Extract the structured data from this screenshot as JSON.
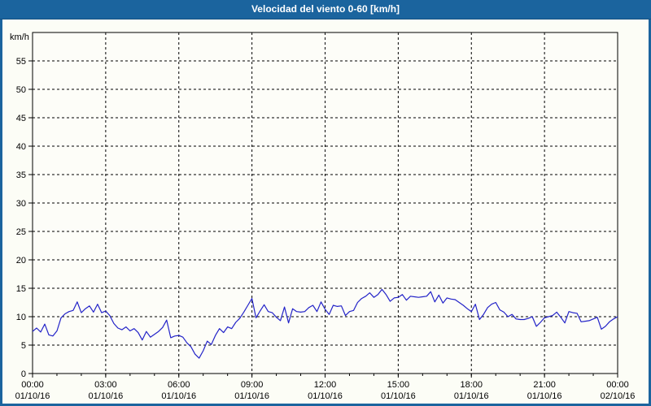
{
  "window": {
    "title": "Velocidad del viento 0-60 [km/h]",
    "titlebar_color": "#1b649e",
    "titlebar_underline_color": "#124f80",
    "frame_color": "#1b649e",
    "content_bg": "#fcfdf6"
  },
  "chart_data": {
    "type": "line",
    "title": "Velocidad del viento 0-60 [km/h]",
    "ylabel": "km/h",
    "ylim": [
      0,
      60
    ],
    "ytick_step": 5,
    "ytick_labels": [
      "0",
      "5",
      "10",
      "15",
      "20",
      "25",
      "30",
      "35",
      "40",
      "45",
      "50",
      "55"
    ],
    "xlim_minutes": [
      0,
      1440
    ],
    "x_minor_step_minutes": 60,
    "x_major_ticks": [
      {
        "minutes": 0,
        "time": "00:00",
        "date": "01/10/16"
      },
      {
        "minutes": 180,
        "time": "03:00",
        "date": "01/10/16"
      },
      {
        "minutes": 360,
        "time": "06:00",
        "date": "01/10/16"
      },
      {
        "minutes": 540,
        "time": "09:00",
        "date": "01/10/16"
      },
      {
        "minutes": 720,
        "time": "12:00",
        "date": "01/10/16"
      },
      {
        "minutes": 900,
        "time": "15:00",
        "date": "01/10/16"
      },
      {
        "minutes": 1080,
        "time": "18:00",
        "date": "01/10/16"
      },
      {
        "minutes": 1260,
        "time": "21:00",
        "date": "01/10/16"
      },
      {
        "minutes": 1440,
        "time": "00:00",
        "date": "02/10/16"
      }
    ],
    "grid_style": "dashed",
    "grid_color": "#000000",
    "line_color": "#2323c8",
    "plot_bg": "#fdfdf8",
    "legend": "none",
    "series": [
      {
        "name": "Velocidad del viento",
        "x_step_minutes": 10,
        "values": [
          7.4,
          8.0,
          7.3,
          8.7,
          6.8,
          6.6,
          7.5,
          9.8,
          10.5,
          10.9,
          11.1,
          12.6,
          10.7,
          11.4,
          11.9,
          10.8,
          12.2,
          10.7,
          11.0,
          10.2,
          8.8,
          8.0,
          7.7,
          8.2,
          7.5,
          7.9,
          7.2,
          5.9,
          7.4,
          6.4,
          6.9,
          7.4,
          8.1,
          9.4,
          6.3,
          6.6,
          6.7,
          6.4,
          5.4,
          4.7,
          3.4,
          2.7,
          4.0,
          5.7,
          5.1,
          6.7,
          7.9,
          7.2,
          8.2,
          7.9,
          9.0,
          9.7,
          10.8,
          12.0,
          13.2,
          9.8,
          11.0,
          12.1,
          10.9,
          10.7,
          9.9,
          9.3,
          11.7,
          8.9,
          11.4,
          10.9,
          10.8,
          10.9,
          11.6,
          12.0,
          10.9,
          12.6,
          11.3,
          10.4,
          12.0,
          11.8,
          11.9,
          10.2,
          10.9,
          11.1,
          12.5,
          13.2,
          13.6,
          14.2,
          13.4,
          13.9,
          14.8,
          13.9,
          12.7,
          13.3,
          13.4,
          13.9,
          12.9,
          13.6,
          13.5,
          13.4,
          13.5,
          13.6,
          14.4,
          12.6,
          13.8,
          12.4,
          13.3,
          13.1,
          13.0,
          12.5,
          12.0,
          11.4,
          10.9,
          12.2,
          9.5,
          10.4,
          11.6,
          12.2,
          12.5,
          11.2,
          10.8,
          10.0,
          10.4,
          9.6,
          9.5,
          9.5,
          9.7,
          10.0,
          8.3,
          9.0,
          9.8,
          10.0,
          10.2,
          10.8,
          9.9,
          8.9,
          10.9,
          10.7,
          10.6,
          9.1,
          9.2,
          9.3,
          9.6,
          9.9,
          7.8,
          8.3,
          9.1,
          9.6,
          10.0
        ]
      }
    ]
  }
}
